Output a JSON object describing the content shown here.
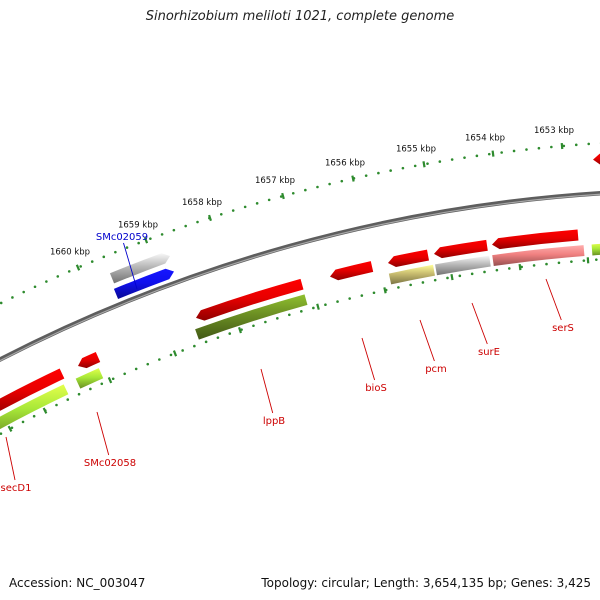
{
  "title": "Sinorhizobium meliloti 1021, complete genome",
  "footer": {
    "accession": "Accession: NC_003047",
    "summary": "Topology: circular; Length: 3,654,135 bp; Genes: 3,425"
  },
  "colors": {
    "backbone": "#7a7a7a",
    "dots": "#2e8b2e",
    "red_gene": "#e80000",
    "grey_gene": "#b8b8b8",
    "blue_gene": "#1010ee",
    "olive_gene": "#6b8e23",
    "lime_gene": "#a8e838",
    "khaki_gene": "#c8bc70",
    "pink_gene": "#f08080",
    "red_label": "#cc0000",
    "blue_label": "#0000cc"
  },
  "ruler": {
    "unit": "kbp",
    "ticks": [
      "1660 kbp",
      "1659 kbp",
      "1658 kbp",
      "1657 kbp",
      "1656 kbp",
      "1655 kbp",
      "1654 kbp",
      "1653 kbp"
    ]
  },
  "genes": [
    {
      "label": "SMc02059",
      "color": "blue_label"
    },
    {
      "label": "secD1",
      "color": "red_label"
    },
    {
      "label": "SMc02058",
      "color": "red_label"
    },
    {
      "label": "lppB",
      "color": "red_label"
    },
    {
      "label": "bioS",
      "color": "red_label"
    },
    {
      "label": "pcm",
      "color": "red_label"
    },
    {
      "label": "surE",
      "color": "red_label"
    },
    {
      "label": "serS",
      "color": "red_label"
    }
  ]
}
